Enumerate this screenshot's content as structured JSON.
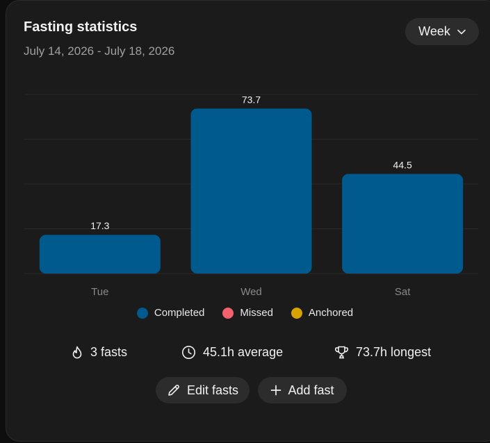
{
  "header": {
    "title": "Fasting statistics",
    "date_range": "July 14, 2026 - July 18, 2026",
    "period_selector": {
      "selected": "Week",
      "icon": "chevron-down-icon"
    }
  },
  "chart_data": {
    "type": "bar",
    "categories": [
      "Tue",
      "Wed",
      "Sat"
    ],
    "series": [
      {
        "name": "Completed",
        "values": [
          17.3,
          73.7,
          44.5
        ],
        "color": "#005a8e"
      }
    ],
    "data_labels": [
      "17.3",
      "73.7",
      "44.5"
    ],
    "ylim": [
      0,
      80
    ],
    "grid": true,
    "legend_position": "bottom"
  },
  "legend": [
    {
      "label": "Completed",
      "color": "#005a8e"
    },
    {
      "label": "Missed",
      "color": "#f2616c"
    },
    {
      "label": "Anchored",
      "color": "#d6a300"
    }
  ],
  "stats": {
    "fasts": {
      "text": "3 fasts",
      "icon": "flame-icon"
    },
    "average": {
      "text": "45.1h average",
      "icon": "clock-icon"
    },
    "longest": {
      "text": "73.7h longest",
      "icon": "trophy-icon"
    }
  },
  "actions": {
    "edit_label": "Edit fasts",
    "edit_icon": "pencil-icon",
    "add_label": "Add fast",
    "add_icon": "plus-icon"
  },
  "colors": {
    "background": "#1b1b1b",
    "button_bg": "#2c2c2c",
    "bar": "#005a8e",
    "grid": "#2a2a2a"
  }
}
